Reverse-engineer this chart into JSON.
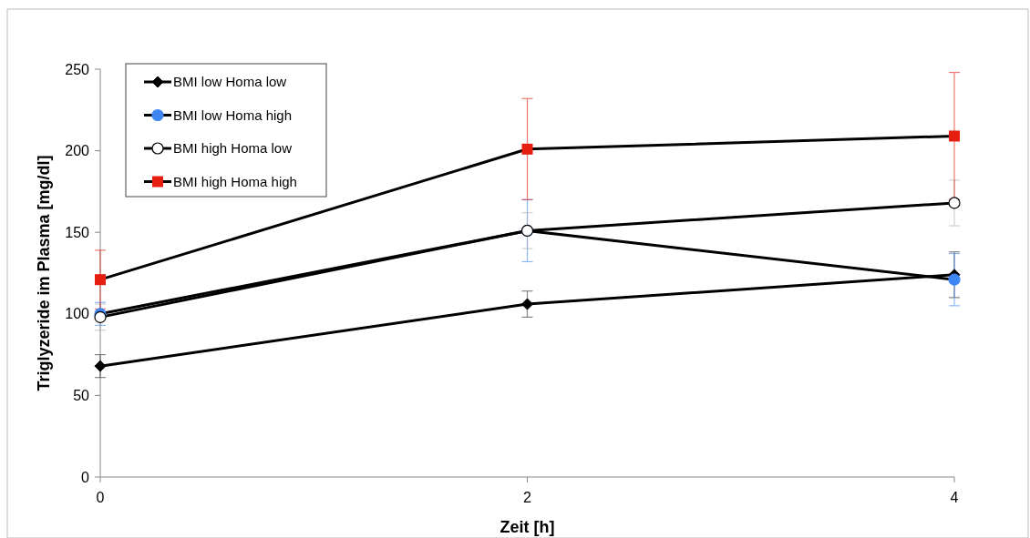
{
  "chart_data": {
    "type": "line",
    "xlabel": "Zeit [h]",
    "ylabel": "Triglyzeride im Plasma [mg/dl]",
    "x": [
      0,
      2,
      4
    ],
    "xlim": [
      0,
      4
    ],
    "xticks": [
      0,
      2,
      4
    ],
    "ylim": [
      0,
      250
    ],
    "yticks": [
      0,
      50,
      100,
      150,
      200,
      250
    ],
    "grid": false,
    "legend": "top left",
    "line_style": "solid",
    "series": [
      {
        "name": "BMI low Homa low",
        "color": "#000000",
        "marker": "diamond",
        "values": [
          68,
          106,
          124
        ],
        "errors": [
          7,
          8,
          14
        ]
      },
      {
        "name": "BMI low Homa high",
        "color": "#3f86f5",
        "marker": "circle",
        "values": [
          100,
          151,
          121
        ],
        "errors": [
          7,
          19,
          16
        ]
      },
      {
        "name": "BMI high Homa low",
        "color": "#ffffff",
        "marker": "circle",
        "values": [
          98,
          151,
          168
        ],
        "errors": [
          8,
          11,
          14
        ]
      },
      {
        "name": "BMI high Homa high",
        "color": "#e51e10",
        "marker": "square",
        "values": [
          121,
          201,
          209
        ],
        "errors": [
          18,
          31,
          39
        ]
      }
    ]
  }
}
